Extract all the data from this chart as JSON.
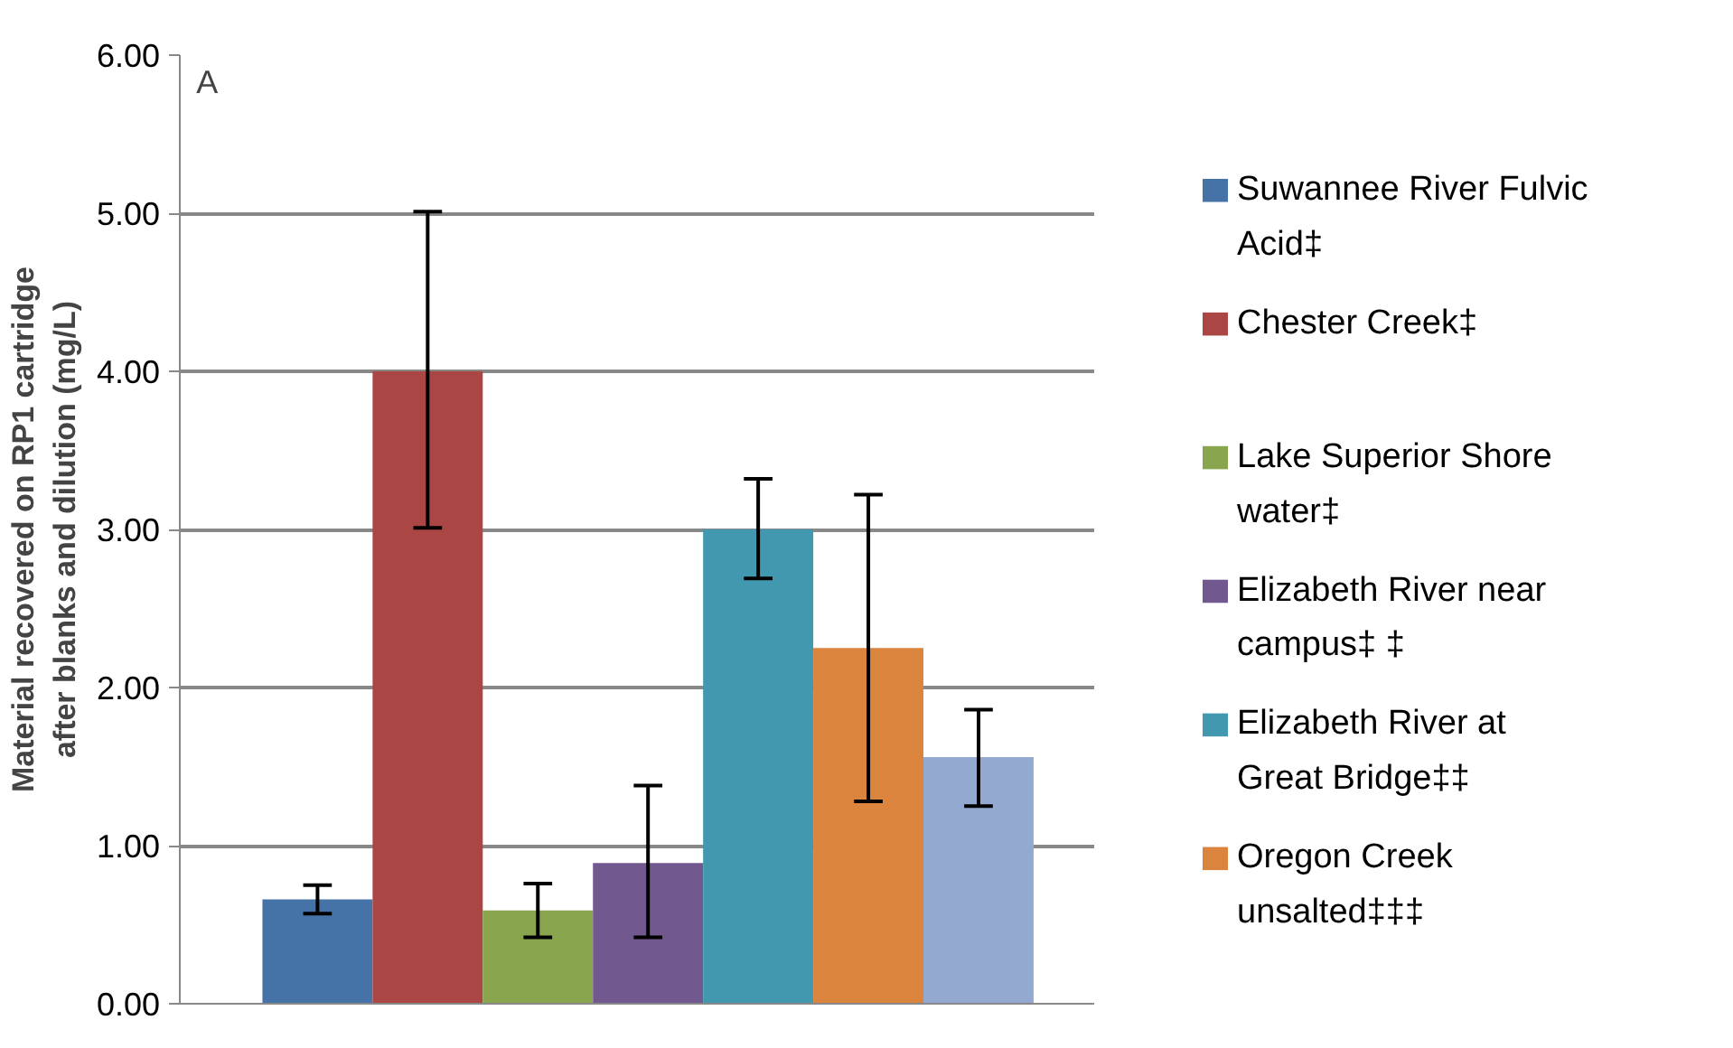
{
  "chart_data": {
    "type": "bar",
    "ylabel": "Material recovered on RP1 cartridge after blanks and dilution (mg/L)",
    "annotations": [
      "A"
    ],
    "categories": [
      null
    ],
    "series": [
      {
        "name": " Suwannee River Fulvic Acid‡",
        "color": "#4572a7",
        "values": [
          0.66
        ],
        "errors": [
          [
            0.57,
            0.75
          ]
        ]
      },
      {
        "name": "Chester Creek‡",
        "color": "#aa4643",
        "values": [
          4.0
        ],
        "errors": [
          [
            3.01,
            5.01
          ]
        ]
      },
      {
        "name": "Lake Superior Shore water‡",
        "color": "#89a54e",
        "values": [
          0.59
        ],
        "errors": [
          [
            0.42,
            0.76
          ]
        ]
      },
      {
        "name": "Elizabeth River near campus‡ ‡",
        "color": "#71588f",
        "values": [
          0.89
        ],
        "errors": [
          [
            0.42,
            1.38
          ]
        ]
      },
      {
        "name": "Elizabeth River at Great Bridge‡‡",
        "color": "#4198af",
        "values": [
          3.0
        ],
        "errors": [
          [
            2.69,
            3.32
          ]
        ]
      },
      {
        "name": "Oregon Creek unsalted‡‡‡",
        "color": "#db843d",
        "values": [
          2.25
        ],
        "errors": [
          [
            1.28,
            3.22
          ]
        ]
      },
      {
        "color": "#93a9cf",
        "values": [
          1.56
        ],
        "errors": [
          [
            1.25,
            1.86
          ]
        ]
      }
    ],
    "ylim": [
      0,
      6
    ],
    "yticks": [
      {
        "value": 0,
        "label": "0.00"
      },
      {
        "value": 1,
        "label": "1.00"
      },
      {
        "value": 2,
        "label": "2.00"
      },
      {
        "value": 3,
        "label": "3.00"
      },
      {
        "value": 4,
        "label": "4.00"
      },
      {
        "value": 5,
        "label": "5.00"
      },
      {
        "value": 6,
        "label": "6.00"
      }
    ],
    "grid": "y",
    "legend": "right",
    "tick_labels": "y"
  }
}
